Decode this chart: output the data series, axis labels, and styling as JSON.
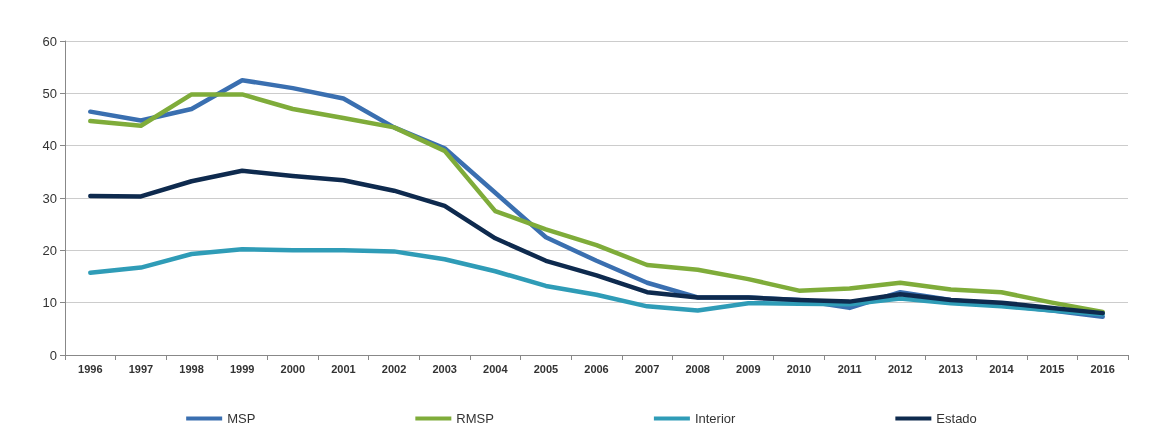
{
  "chart_data": {
    "type": "line",
    "categories": [
      "1996",
      "1997",
      "1998",
      "1999",
      "2000",
      "2001",
      "2002",
      "2003",
      "2004",
      "2005",
      "2006",
      "2007",
      "2008",
      "2009",
      "2010",
      "2011",
      "2012",
      "2013",
      "2014",
      "2015",
      "2016"
    ],
    "series": [
      {
        "name": "MSP",
        "color": "#3a6fb0",
        "values": [
          46.5,
          44.8,
          47,
          52.5,
          51,
          49,
          43.5,
          39.5,
          31,
          22.5,
          18,
          13.8,
          11,
          11,
          10.5,
          9,
          12,
          10.5,
          9.5,
          8.5,
          7.3
        ]
      },
      {
        "name": "RMSP",
        "color": "#7fac3a",
        "values": [
          44.7,
          43.8,
          49.8,
          49.8,
          47,
          45.3,
          43.5,
          39,
          27.5,
          24,
          21,
          17.2,
          16.3,
          14.5,
          12.3,
          12.7,
          13.8,
          12.5,
          12,
          10,
          8.2
        ]
      },
      {
        "name": "Interior",
        "color": "#2f9cb7",
        "values": [
          15.7,
          16.7,
          19.3,
          20.2,
          20,
          20,
          19.8,
          18.3,
          16,
          13.2,
          11.5,
          9.3,
          8.5,
          9.9,
          9.8,
          9.7,
          10.8,
          9.9,
          9.3,
          8.5,
          7.8
        ]
      },
      {
        "name": "Estado",
        "color": "#0e2a4e",
        "values": [
          30.4,
          30.3,
          33.2,
          35.2,
          34.2,
          33.4,
          31.4,
          28.5,
          22.3,
          18,
          15.2,
          12,
          11,
          11,
          10.5,
          10.2,
          11.6,
          10.5,
          10,
          9,
          8
        ]
      }
    ],
    "ylim": [
      0,
      60
    ],
    "yticks": [
      0,
      10,
      20,
      30,
      40,
      50,
      60
    ],
    "grid": "y",
    "legend": "bottom",
    "marker": "none",
    "line_style": "solid"
  }
}
